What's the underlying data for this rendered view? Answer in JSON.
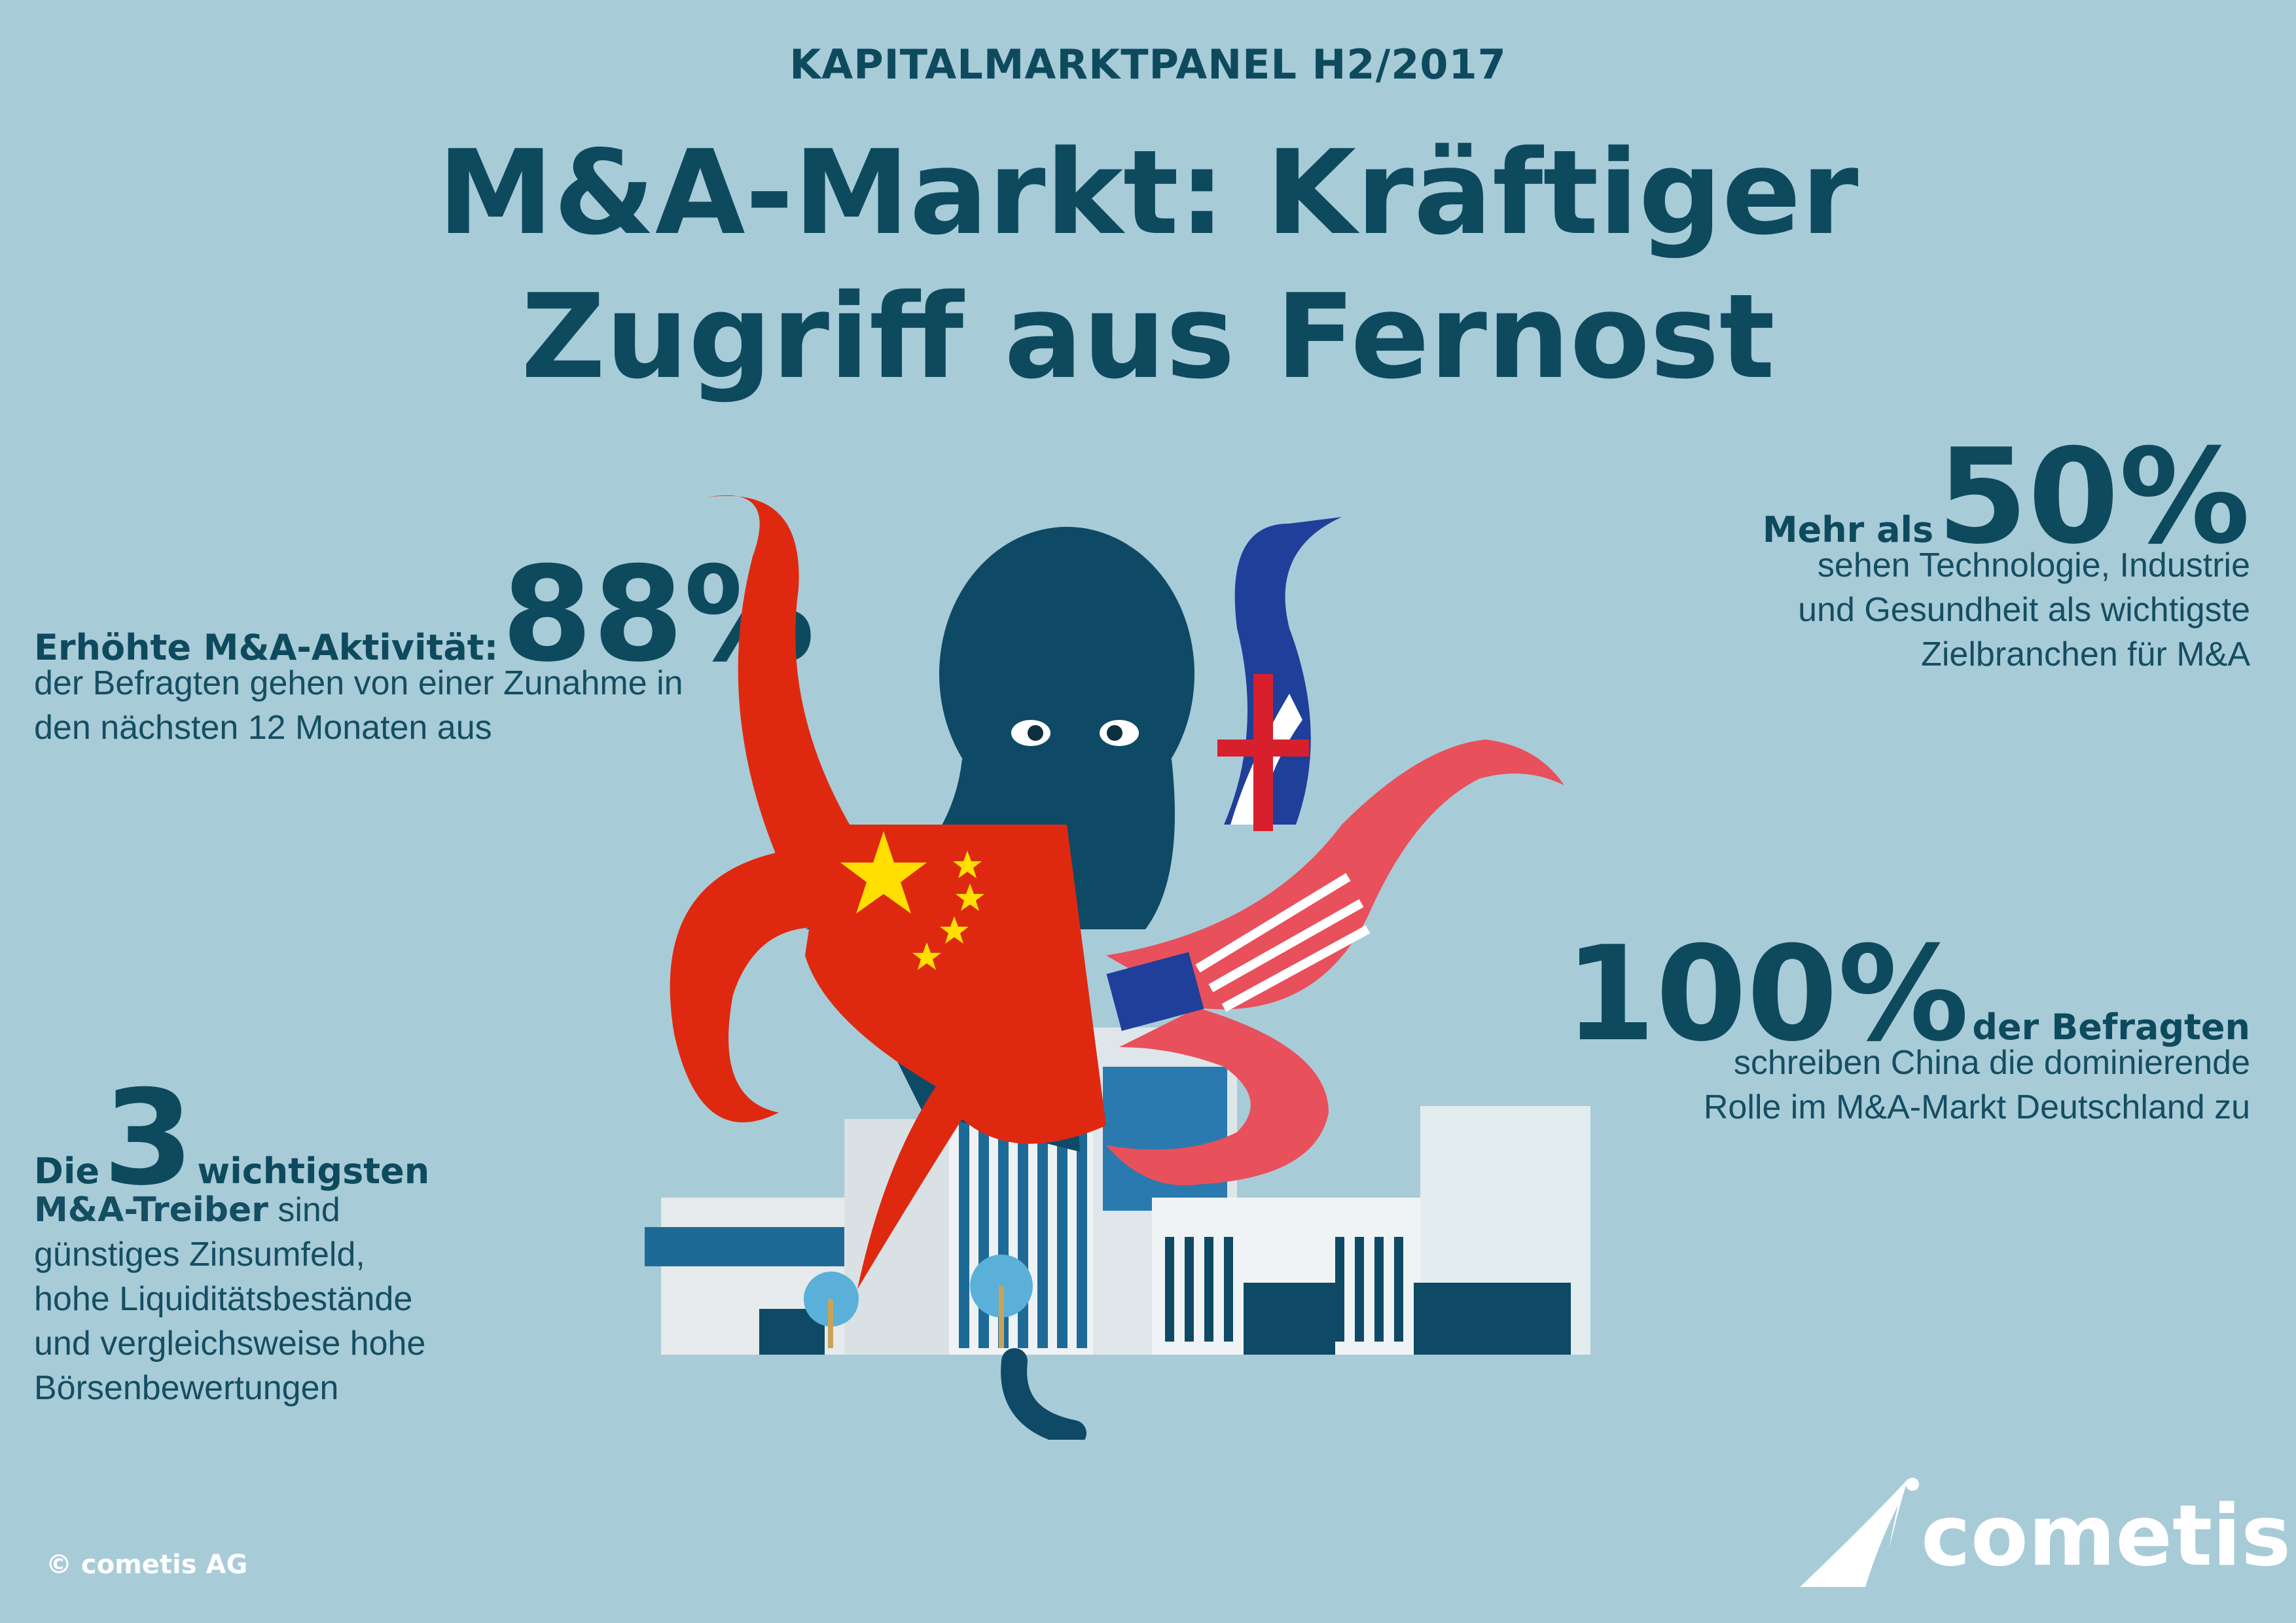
{
  "header": {
    "supertitle": "KAPITALMARKTPANEL H2/2017",
    "title_line1": "M&A-Markt: Kräftiger",
    "title_line2": "Zugriff aus Fernost"
  },
  "stat_activity": {
    "label": "Erhöhte M&A-Aktivität:",
    "value": "88%",
    "text_line1": "der Befragten gehen von einer Zunahme in",
    "text_line2": "den nächsten 12 Monaten aus"
  },
  "stat_sectors": {
    "prefix": "Mehr als",
    "value": "50%",
    "text_line1": "sehen Technologie, Industrie",
    "text_line2": "und Gesundheit als wichtigste",
    "text_line3": "Zielbranchen für M&A"
  },
  "stat_china": {
    "value": "100%",
    "suffix": "der Befragten",
    "text_line1": "schreiben China die dominierende",
    "text_line2": "Rolle im M&A-Markt Deutschland zu"
  },
  "stat_drivers": {
    "prefix": "Die",
    "value": "3",
    "suffix": "wichtigsten",
    "label": "M&A-Treiber",
    "label_rest": " sind",
    "text_line1": "günstiges Zinsumfeld,",
    "text_line2": "hohe Liquiditätsbestände",
    "text_line3": "und vergleichsweise hohe",
    "text_line4": "Börsenbewertungen"
  },
  "footer": {
    "copyright": "© cometis AG",
    "logo_text": "cometis"
  },
  "colors": {
    "background": "#a8cbd8",
    "text": "#0e4a5e",
    "octopus": "#0e4a66",
    "china_red": "#de2910",
    "star_yellow": "#ffde00",
    "usa_red": "#e8505b",
    "uk_blue": "#1f3f9a"
  },
  "illustration": {
    "subject": "octopus-icon",
    "flags": [
      "china-flag-icon",
      "uk-flag-icon",
      "usa-flag-icon"
    ],
    "buildings": "office-buildings-icon"
  }
}
